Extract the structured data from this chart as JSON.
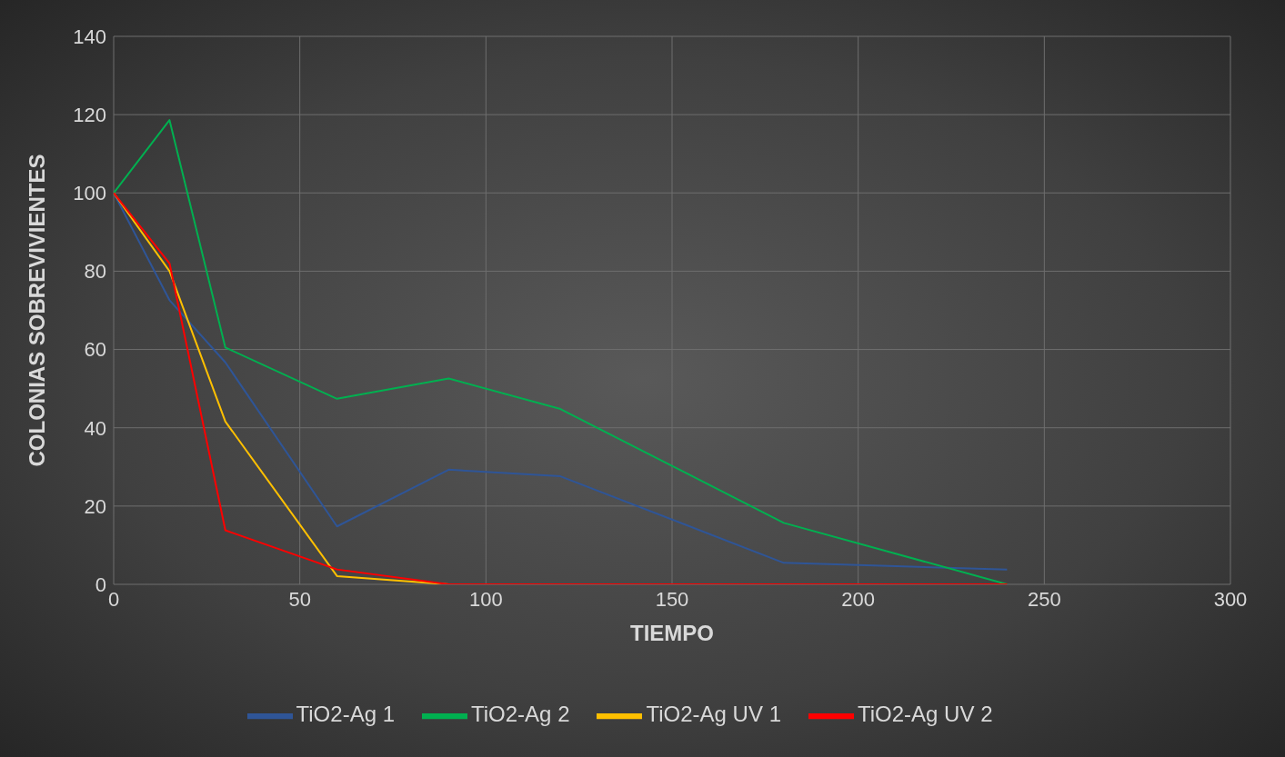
{
  "chart_data": {
    "type": "line",
    "xlabel": "TIEMPO",
    "ylabel": "COLONIAS SOBREVIVIENTES",
    "x": [
      0,
      15,
      30,
      60,
      90,
      120,
      180,
      240
    ],
    "series": [
      {
        "name": "TiO2-Ag 1",
        "color": "#2f5597",
        "values": [
          100,
          72.6,
          56.7,
          14.8,
          29.3,
          27.6,
          5.5,
          3.8
        ]
      },
      {
        "name": "TiO2-Ag 2",
        "color": "#00b050",
        "values": [
          100,
          118.6,
          60.5,
          47.4,
          52.6,
          44.8,
          15.7,
          0
        ]
      },
      {
        "name": "TiO2-Ag UV 1",
        "color": "#ffc000",
        "values": [
          100,
          80,
          41.6,
          2.1,
          0,
          null,
          null,
          null
        ]
      },
      {
        "name": "TiO2-Ag UV 2",
        "color": "#ff0000",
        "values": [
          100,
          82,
          13.8,
          3.8,
          0,
          0,
          0,
          0
        ]
      }
    ],
    "xlim": [
      0,
      300
    ],
    "xticks": [
      0,
      50,
      100,
      150,
      200,
      250,
      300
    ],
    "ylim": [
      0,
      140
    ],
    "yticks": [
      0,
      20,
      40,
      60,
      80,
      100,
      120,
      140
    ],
    "grid": true,
    "legend": "bottom",
    "line_style": "solid"
  }
}
